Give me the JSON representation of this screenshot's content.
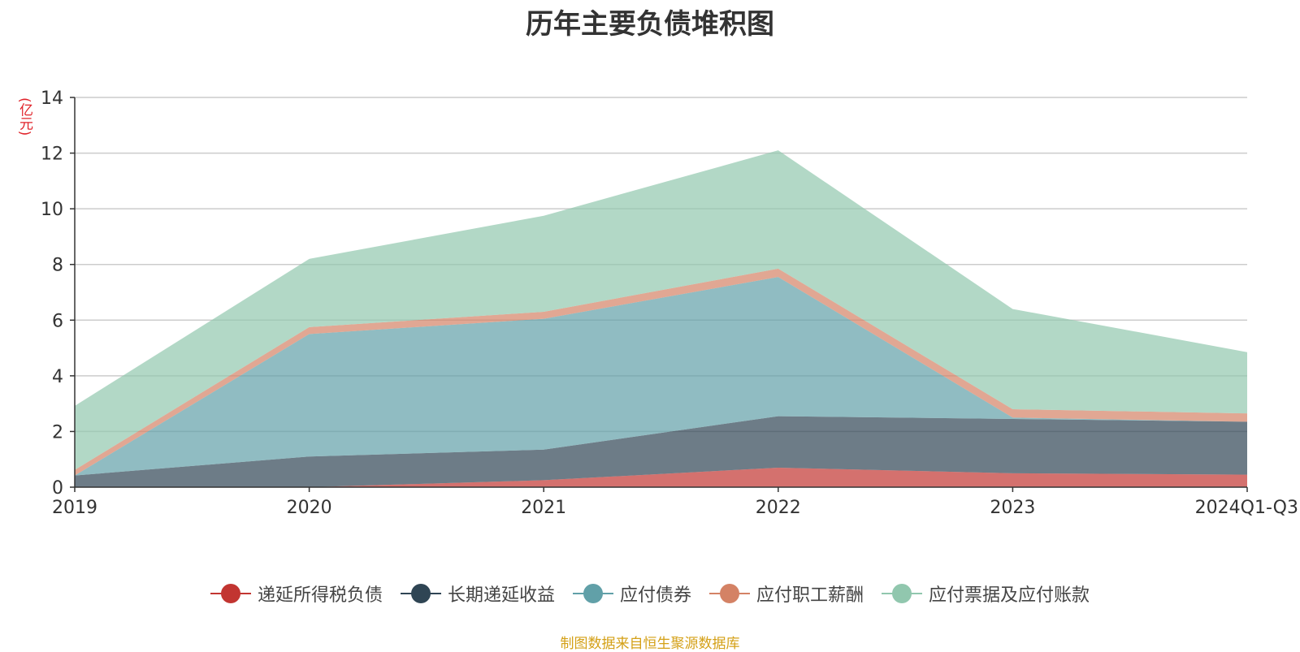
{
  "chart_data": {
    "type": "area",
    "stacked": true,
    "title": "历年主要负债堆积图",
    "ylabel": "(亿元)",
    "ylim": [
      0,
      14
    ],
    "yticks": [
      0,
      2,
      4,
      6,
      8,
      10,
      12,
      14
    ],
    "categories": [
      "2019",
      "2020",
      "2021",
      "2022",
      "2023",
      "2024Q1-Q3"
    ],
    "grid": true,
    "legend_position": "bottom",
    "series": [
      {
        "name": "递延所得税负债",
        "color": "#c23531",
        "values": [
          0.0,
          0.0,
          0.25,
          0.7,
          0.5,
          0.45
        ]
      },
      {
        "name": "长期递延收益",
        "color": "#2f4554",
        "values": [
          0.42,
          1.1,
          1.1,
          1.85,
          1.95,
          1.9
        ]
      },
      {
        "name": "应付债券",
        "color": "#61a0a8",
        "values": [
          0.0,
          4.4,
          4.7,
          5.0,
          0.05,
          0.0
        ]
      },
      {
        "name": "应付职工薪酬",
        "color": "#d48265",
        "values": [
          0.2,
          0.25,
          0.25,
          0.3,
          0.3,
          0.3
        ]
      },
      {
        "name": "应付票据及应付账款",
        "color": "#91c7ae",
        "values": [
          2.3,
          2.45,
          3.45,
          4.25,
          3.6,
          2.2
        ]
      }
    ],
    "source_note": "制图数据来自恒生聚源数据库"
  }
}
